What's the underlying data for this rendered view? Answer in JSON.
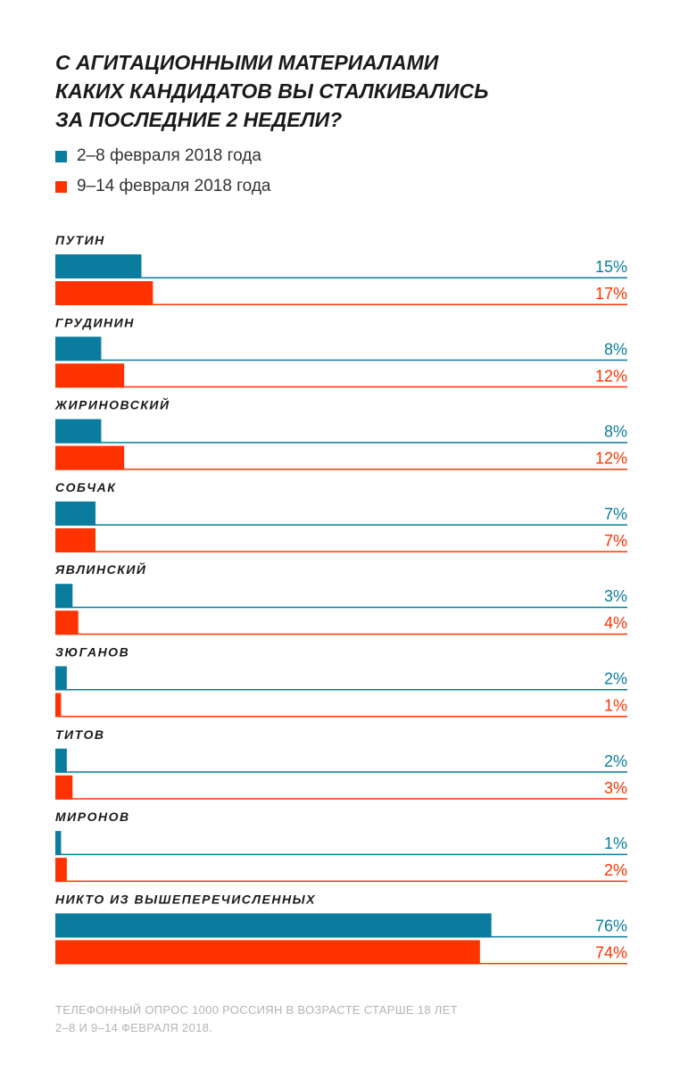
{
  "title_lines": [
    "С агитационными материалами",
    "каких кандидатов вы сталкивались",
    "за последние 2 недели?"
  ],
  "legend": [
    {
      "label": "2–8 февраля 2018 года",
      "color": "#0a7c9e"
    },
    {
      "label": "9–14 февраля 2018 года",
      "color": "#ff3300"
    }
  ],
  "footnote_lines": [
    "Телефонный опрос 1000 россиян в возрасте старше 18 лет",
    "2–8 и 9–14 февраля 2018."
  ],
  "chart_data": {
    "type": "bar",
    "orientation": "horizontal",
    "unit": "%",
    "xlim": [
      0,
      100
    ],
    "categories": [
      "ПУТИН",
      "ГРУДИНИН",
      "ЖИРИНОВСКИЙ",
      "СОБЧАК",
      "ЯВЛИНСКИЙ",
      "ЗЮГАНОВ",
      "ТИТОВ",
      "МИРОНОВ",
      "НИКТО ИЗ ВЫШЕПЕРЕЧИСЛЕННЫХ"
    ],
    "series": [
      {
        "name": "2–8 февраля 2018 года",
        "color": "#0a7c9e",
        "values": [
          15,
          8,
          8,
          7,
          3,
          2,
          2,
          1,
          76
        ]
      },
      {
        "name": "9–14 февраля 2018 года",
        "color": "#ff3300",
        "values": [
          17,
          12,
          12,
          7,
          4,
          1,
          3,
          2,
          74
        ]
      }
    ],
    "value_labels": [
      [
        "15%",
        "8%",
        "8%",
        "7%",
        "3%",
        "2%",
        "2%",
        "1%",
        "76%"
      ],
      [
        "17%",
        "12%",
        "12%",
        "7%",
        "4%",
        "1%",
        "3%",
        "2%",
        "74%"
      ]
    ]
  }
}
